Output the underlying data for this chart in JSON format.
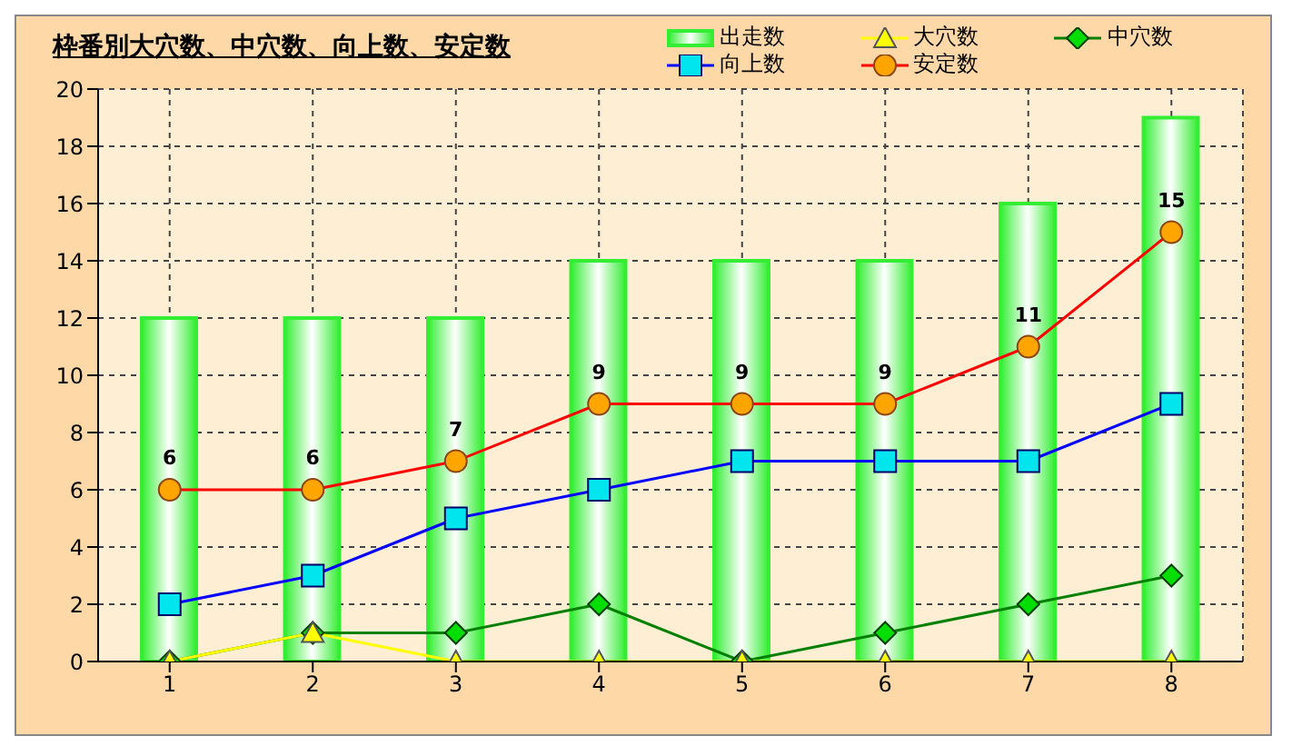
{
  "chart_data": {
    "type": "bar",
    "title": "枠番別大穴数、中穴数、向上数、安定数",
    "categories": [
      "1",
      "2",
      "3",
      "4",
      "5",
      "6",
      "7",
      "8"
    ],
    "series": [
      {
        "name": "出走数",
        "color": "#33ee33",
        "values": [
          12,
          12,
          12,
          14,
          14,
          14,
          16,
          19
        ]
      },
      {
        "name": "大穴数",
        "type": "line",
        "color": "#ffff00",
        "marker": "triangle",
        "values": [
          0,
          1,
          0,
          0,
          0,
          0,
          0,
          0
        ]
      },
      {
        "name": "中穴数",
        "type": "line",
        "color": "#008000",
        "marker": "diamond",
        "values": [
          0,
          1,
          1,
          2,
          0,
          1,
          2,
          3
        ]
      },
      {
        "name": "向上数",
        "type": "line",
        "color": "#0000ff",
        "marker": "square",
        "values": [
          2,
          3,
          5,
          6,
          7,
          7,
          7,
          9
        ]
      },
      {
        "name": "安定数",
        "type": "line",
        "color": "#ff0000",
        "marker": "circle",
        "values": [
          6,
          6,
          7,
          9,
          9,
          9,
          11,
          15
        ],
        "value_labels": [
          "6",
          "6",
          "7",
          "9",
          "9",
          "9",
          "11",
          "15"
        ]
      }
    ],
    "ylim": [
      0,
      20
    ],
    "yticks": [
      0,
      2,
      4,
      6,
      8,
      10,
      12,
      14,
      16,
      18,
      20
    ],
    "grid": true,
    "legend": "top right"
  }
}
